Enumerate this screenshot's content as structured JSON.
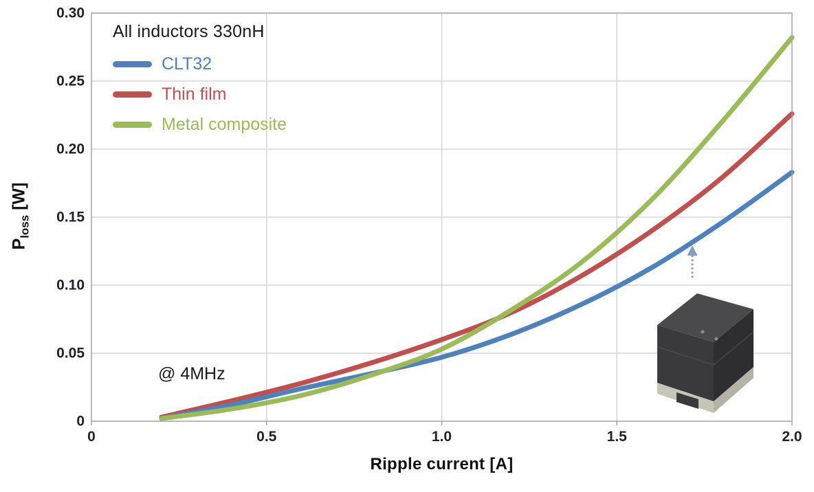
{
  "chart_data": {
    "type": "line",
    "legend_title": "All inductors 330nH",
    "annotation": "@ 4MHz",
    "xlabel": "Ripple current [A]",
    "ylabel": "P_loss [W]",
    "ylabel_parts": {
      "main": "P",
      "sub": "loss",
      "unit": "[W]"
    },
    "xlim": [
      0,
      2.0
    ],
    "ylim": [
      0,
      0.3
    ],
    "grid": true,
    "legend_position": "top-left-inside",
    "x_ticks": [
      {
        "label": "0",
        "value": 0
      },
      {
        "label": "0.5",
        "value": 0.5
      },
      {
        "label": "1.0",
        "value": 1.0
      },
      {
        "label": "1.5",
        "value": 1.5
      },
      {
        "label": "2.0",
        "value": 2.0
      }
    ],
    "y_ticks": [
      {
        "label": "0.30",
        "value": 0.3
      },
      {
        "label": "0.25",
        "value": 0.25
      },
      {
        "label": "0.20",
        "value": 0.2
      },
      {
        "label": "0.15",
        "value": 0.15
      },
      {
        "label": "0.10",
        "value": 0.1
      },
      {
        "label": "0.05",
        "value": 0.05
      },
      {
        "label": "0",
        "value": 0
      }
    ],
    "x": [
      0.2,
      0.4,
      0.6,
      0.8,
      1.0,
      1.2,
      1.4,
      1.6,
      1.8,
      2.0
    ],
    "series": [
      {
        "name": "Thin film",
        "color": "#C0504D",
        "values": [
          0.003,
          0.015,
          0.028,
          0.043,
          0.06,
          0.08,
          0.107,
          0.14,
          0.179,
          0.226
        ]
      },
      {
        "name": "CLT32",
        "color": "#4F81BD",
        "values": [
          0.002,
          0.012,
          0.024,
          0.035,
          0.047,
          0.064,
          0.086,
          0.113,
          0.146,
          0.183
        ]
      },
      {
        "name": "Metal composite",
        "color": "#9BBB59",
        "values": [
          0.002,
          0.009,
          0.019,
          0.034,
          0.053,
          0.082,
          0.117,
          0.163,
          0.22,
          0.282
        ]
      }
    ],
    "legend_order": [
      "CLT32",
      "Thin film",
      "Metal composite"
    ]
  },
  "colors": {
    "grid": "#d6d6d6",
    "axis_border": "#a3a3a3",
    "tick_text": "#22222c",
    "arrow": "#7b93bb"
  },
  "inset": {
    "image": "clt32-inductor-3d-render"
  }
}
